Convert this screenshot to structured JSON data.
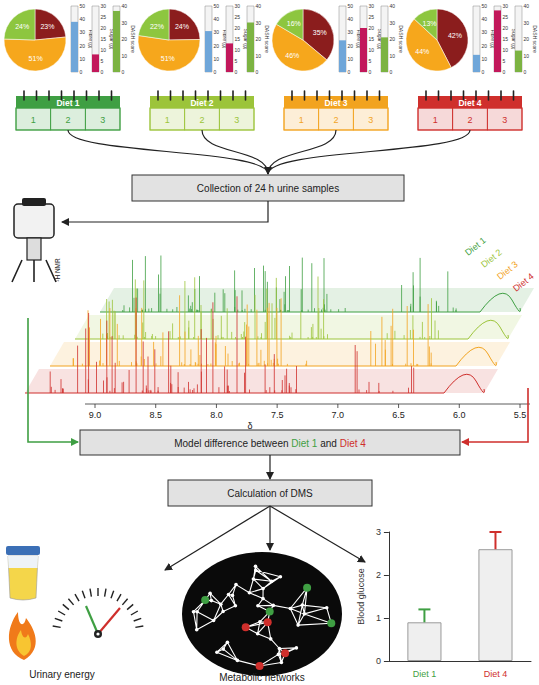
{
  "diets": [
    {
      "name": "Diet 1",
      "color": "#3f9f43",
      "pie": {
        "values": [
          23,
          51,
          24
        ],
        "value_labels": [
          "23%",
          "51%",
          "24%"
        ]
      }
    },
    {
      "name": "Diet 2",
      "color": "#9cc43a",
      "pie": {
        "values": [
          24,
          51,
          22
        ],
        "value_labels": [
          "24%",
          "51%",
          "22%"
        ]
      }
    },
    {
      "name": "Diet 3",
      "color": "#f2a31f",
      "pie": {
        "values": [
          35,
          46,
          16
        ],
        "value_labels": [
          "35%",
          "46%",
          "16%"
        ]
      }
    },
    {
      "name": "Diet 4",
      "color": "#cf2f2c",
      "pie": {
        "values": [
          42,
          44,
          13
        ],
        "value_labels": [
          "42%",
          "44%",
          "13%"
        ]
      }
    }
  ],
  "pie_colors": [
    "#8b1d1d",
    "#f6a71c",
    "#8dc63f"
  ],
  "gauges": [
    {
      "label": "Fibre (g)",
      "color": "#6fa6d9",
      "ylim": [
        0,
        50
      ],
      "yticks": [
        0,
        10,
        20,
        30,
        40,
        50
      ],
      "values": [
        38,
        31,
        24,
        13
      ]
    },
    {
      "label": "Sugar (g)",
      "color": "#c2185b",
      "ylim": [
        0,
        30
      ],
      "yticks": [
        0,
        5,
        10,
        15,
        20,
        25,
        30
      ],
      "values": [
        8,
        13,
        20,
        28
      ]
    },
    {
      "label": "DASH score",
      "color": "#7cb342",
      "ylim": [
        0,
        40
      ],
      "yticks": [
        0,
        10,
        20,
        30,
        40
      ],
      "values": [
        37,
        30,
        21,
        13
      ]
    }
  ],
  "calendar": {
    "days": [
      "1",
      "2",
      "3"
    ]
  },
  "boxes": {
    "collection": "Collection of 24 h urine samples",
    "model": {
      "text": "Model difference between",
      "a": "Diet 1",
      "joiner": "and",
      "b": "Diet 4"
    },
    "dms": "Calculation of DMS"
  },
  "nmr_label": "¹H NMR",
  "spectrum": {
    "axis_label": "δ",
    "ticks": [
      {
        "value": 9,
        "label": "9.0"
      },
      {
        "value": 8.5,
        "label": "8.5"
      },
      {
        "value": 8,
        "label": "8.0"
      },
      {
        "value": 7.5,
        "label": "7.5"
      },
      {
        "value": 7,
        "label": "7.0"
      },
      {
        "value": 6.5,
        "label": "6.5"
      },
      {
        "value": 6,
        "label": "6.0"
      },
      {
        "value": 5.5,
        "label": "5.5"
      }
    ]
  },
  "outputs": {
    "urinary_energy": "Urinary energy",
    "metabolic_networks": "Metabolic networks"
  },
  "chart_data": {
    "type": "bar",
    "ylabel": "Blood glucose",
    "categories": [
      "Diet 1",
      "Diet 4"
    ],
    "values": [
      0.9,
      2.6
    ],
    "errors": [
      0.3,
      0.4
    ],
    "colors": [
      "#3f9f43",
      "#cf2f2c"
    ],
    "ylim": [
      0,
      3
    ],
    "yticks": [
      0,
      1,
      2,
      3
    ]
  }
}
